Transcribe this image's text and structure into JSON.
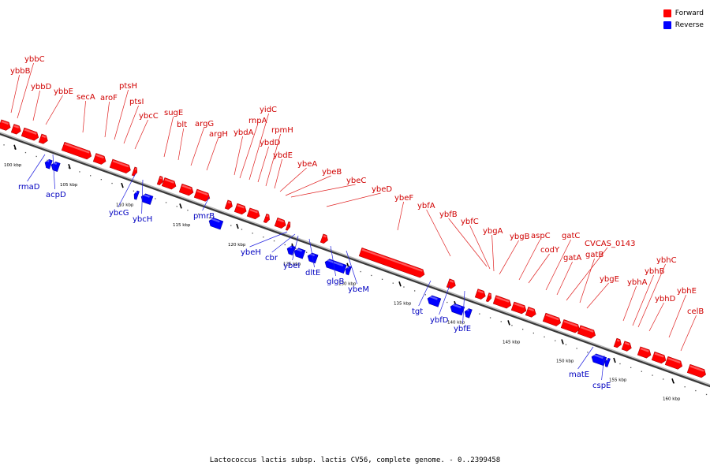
{
  "caption": "Lactococcus lactis subsp. lactis CV56, complete genome. - 0..2399458",
  "legend": [
    {
      "label": "Forward",
      "color": "#ff0000"
    },
    {
      "label": "Reverse",
      "color": "#0000ff"
    }
  ],
  "colors": {
    "forward": "#ff0000",
    "reverse": "#0000ff",
    "backbone": "#707070"
  },
  "axis_labels": [
    "100 kbp",
    "105 kbp",
    "110 kbp",
    "115 kbp",
    "120 kbp",
    "125 kbp",
    "130 kbp",
    "135 kbp",
    "140 kbp",
    "145 kbp",
    "150 kbp",
    "155 kbp",
    "160 kbp"
  ],
  "forward_genes": [
    "ybbB",
    "ybbC",
    "ybbD",
    "ybbE",
    "secA",
    "aroF",
    "ptsH",
    "ptsI",
    "ybcC",
    "sugE",
    "blt",
    "argG",
    "argH",
    "ybdA",
    "rnpA",
    "yidC",
    "ybdD",
    "rpmH",
    "ybdE",
    "ybeA",
    "ybeB",
    "ybeC",
    "ybeD",
    "ybeF",
    "ybfA",
    "ybfB",
    "ybfC",
    "ybgA",
    "ybgB",
    "aspC",
    "codY",
    "gatC",
    "gatA",
    "CVCAS_0143",
    "gatB",
    "ybgE",
    "ybhA",
    "ybhB",
    "ybhC",
    "ybhD",
    "ybhE",
    "celB"
  ],
  "reverse_genes": [
    "rmaD",
    "acpD",
    "ybcG",
    "ybcH",
    "pmrB",
    "ybeH",
    "cbr",
    "ybeI",
    "dltE",
    "glgB",
    "ybeM",
    "tgt",
    "ybfD",
    "ybfE",
    "matE",
    "cspE"
  ]
}
